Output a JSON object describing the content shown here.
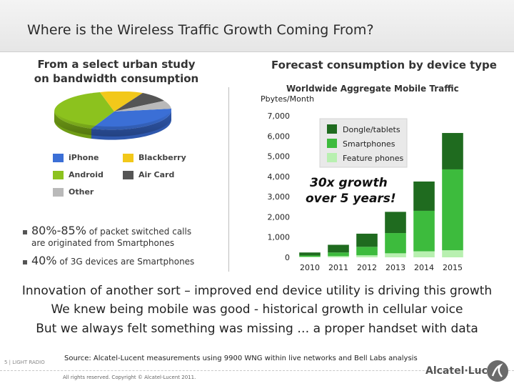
{
  "slide": {
    "title": "Where is the Wireless Traffic Growth Coming From?",
    "left_heading_line1": "From a select urban study",
    "left_heading_line2": "on bandwidth consumption",
    "right_heading": "Forecast consumption by device type"
  },
  "pie": {
    "legend": [
      {
        "label": "iPhone",
        "color": "#3b6fd6"
      },
      {
        "label": "Blackberry",
        "color": "#f2c81a"
      },
      {
        "label": "Android",
        "color": "#8cc21e"
      },
      {
        "label": "Air Card",
        "color": "#555555"
      },
      {
        "label": "Other",
        "color": "#b9b9b9"
      }
    ]
  },
  "bullets": [
    {
      "highlight": "80%-85%",
      "text": " of packet switched calls",
      "continuation": "are originated from Smartphones"
    },
    {
      "highlight": "40%",
      "text": " of 3G devices are Smartphones",
      "continuation": ""
    }
  ],
  "chart_data": {
    "type": "bar",
    "stacked": true,
    "title": "Worldwide Aggregate Mobile Traffic",
    "ylabel": "Pbytes/Month",
    "categories": [
      "2010",
      "2011",
      "2012",
      "2013",
      "2014",
      "2015"
    ],
    "series": [
      {
        "name": "Dongle/tablets",
        "color": "#1f6b1f",
        "values": [
          150,
          380,
          650,
          1050,
          1450,
          1800
        ]
      },
      {
        "name": "Smartphones",
        "color": "#3dbb3d",
        "values": [
          60,
          180,
          420,
          1000,
          2000,
          4000
        ]
      },
      {
        "name": "Feature phones",
        "color": "#b8f0b0",
        "values": [
          30,
          60,
          100,
          200,
          300,
          350
        ]
      }
    ],
    "ylim": [
      0,
      7000
    ],
    "yticks": [
      "0",
      "1,000",
      "2,000",
      "3,000",
      "4,000",
      "5,000",
      "6,000",
      "7,000"
    ],
    "legend_position": "top-right",
    "annotation": [
      "30x growth",
      "over 5 years!"
    ],
    "grid": false
  },
  "statements": [
    "Innovation of another sort – improved  end device utility is driving this growth",
    "We knew being mobile was good  - historical growth in cellular voice",
    "But we always felt something was missing … a proper handset with data"
  ],
  "footer": {
    "page_number": "5 | LIGHT RADIO",
    "source": "Source: Alcatel-Lucent measurements using 9900 WNG within live networks and Bell Labs analysis",
    "copyright": "All rights reserved. Copyright © Alcatel-Lucent 2011.",
    "brand": "Alcatel·Lucent"
  }
}
